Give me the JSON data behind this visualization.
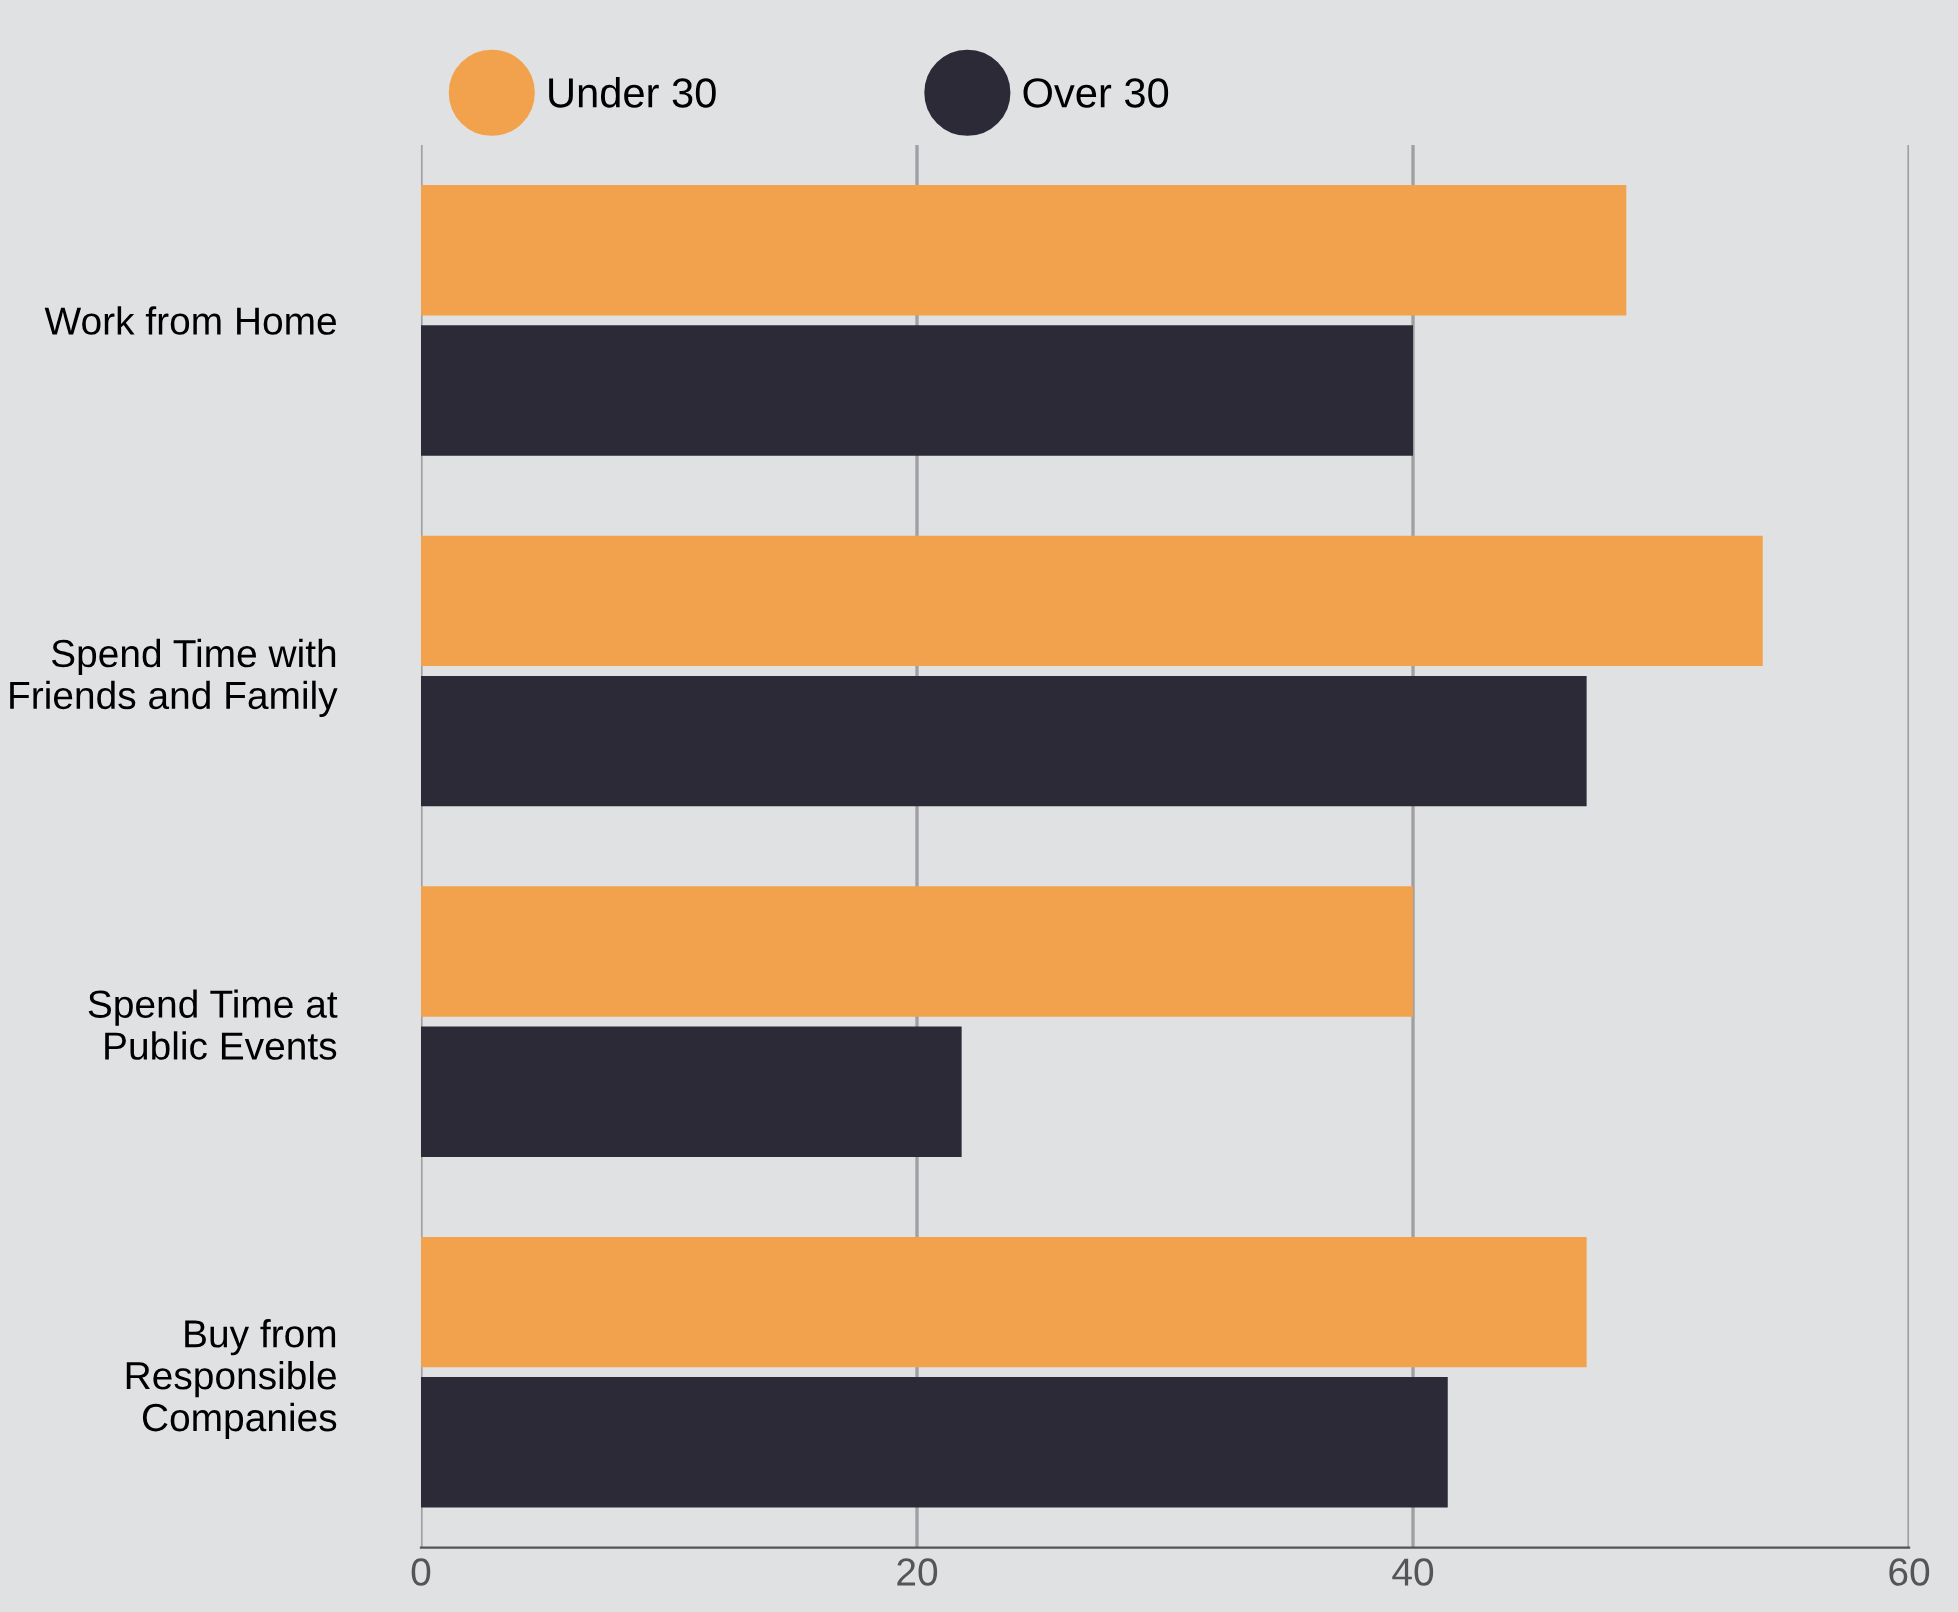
{
  "chart_data": {
    "type": "bar",
    "orientation": "horizontal",
    "categories": [
      "Work from Home",
      "Spend Time with\nFriends and Family",
      "Spend Time at\nPublic Events",
      "Buy from\nResponsible\nCompanies"
    ],
    "series": [
      {
        "name": "Under 30",
        "color": "#f2a24c",
        "values": [
          48.6,
          54.1,
          40,
          47
        ]
      },
      {
        "name": "Over 30",
        "color": "#2b2a36",
        "values": [
          40,
          47,
          21.8,
          41.4
        ]
      }
    ],
    "xlim": [
      0,
      60
    ],
    "xticks": [
      0,
      20,
      40,
      60
    ],
    "grid": "x",
    "legend": "top left"
  }
}
